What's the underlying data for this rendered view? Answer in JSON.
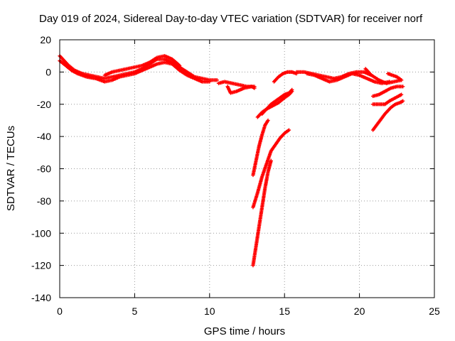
{
  "chart_data": {
    "type": "scatter",
    "title": "Day 019 of 2024, Sidereal Day-to-day VTEC variation (SDTVAR) for receiver norf",
    "xlabel": "GPS time / hours",
    "ylabel": "SDTVAR / TECUs",
    "xlim": [
      0,
      25
    ],
    "ylim": [
      -140,
      20
    ],
    "xticks": [
      0,
      5,
      10,
      15,
      20,
      25
    ],
    "yticks": [
      -140,
      -120,
      -100,
      -80,
      -60,
      -40,
      -20,
      0,
      20
    ],
    "grid": true,
    "marker": "+",
    "color": "#ff0000",
    "series": [
      {
        "points": [
          [
            0.0,
            10
          ],
          [
            0.3,
            7
          ],
          [
            0.6,
            4
          ],
          [
            1.0,
            1
          ],
          [
            1.5,
            -1
          ],
          [
            2.0,
            -2
          ],
          [
            2.5,
            -3
          ],
          [
            3.0,
            -4
          ],
          [
            3.5,
            -3
          ],
          [
            4.0,
            -2
          ],
          [
            4.5,
            -1
          ],
          [
            5.0,
            0
          ],
          [
            5.5,
            2
          ],
          [
            6.0,
            5
          ],
          [
            6.5,
            8
          ],
          [
            7.0,
            8
          ],
          [
            7.5,
            6
          ],
          [
            8.0,
            3
          ],
          [
            8.5,
            0
          ],
          [
            9.0,
            -3
          ],
          [
            9.5,
            -4
          ],
          [
            10.0,
            -5
          ],
          [
            10.5,
            -5
          ]
        ]
      },
      {
        "points": [
          [
            0.0,
            7
          ],
          [
            0.4,
            4
          ],
          [
            0.8,
            1
          ],
          [
            1.2,
            -1
          ],
          [
            1.8,
            -3
          ],
          [
            2.4,
            -4
          ],
          [
            3.0,
            -6
          ],
          [
            3.5,
            -5
          ],
          [
            4.0,
            -3
          ],
          [
            4.5,
            -2
          ],
          [
            5.0,
            -1
          ],
          [
            5.5,
            1
          ],
          [
            6.0,
            3
          ],
          [
            6.5,
            5
          ],
          [
            7.0,
            6
          ],
          [
            7.5,
            5
          ],
          [
            8.0,
            1
          ],
          [
            8.5,
            -2
          ],
          [
            9.0,
            -4
          ],
          [
            9.5,
            -6
          ],
          [
            10.0,
            -6
          ]
        ]
      },
      {
        "points": [
          [
            3.0,
            -2
          ],
          [
            3.5,
            0
          ],
          [
            4.0,
            1
          ],
          [
            4.5,
            2
          ],
          [
            5.0,
            3
          ],
          [
            5.5,
            4
          ],
          [
            6.0,
            6
          ],
          [
            6.5,
            9
          ],
          [
            7.0,
            10
          ],
          [
            7.5,
            8
          ],
          [
            8.0,
            4
          ]
        ]
      },
      {
        "points": [
          [
            10.6,
            -7
          ],
          [
            11.0,
            -6
          ],
          [
            11.5,
            -7
          ],
          [
            12.0,
            -8
          ],
          [
            12.5,
            -9
          ],
          [
            13.0,
            -9
          ]
        ]
      },
      {
        "points": [
          [
            11.2,
            -9
          ],
          [
            11.4,
            -13
          ],
          [
            11.8,
            -12
          ],
          [
            12.3,
            -10
          ],
          [
            12.8,
            -9
          ],
          [
            13.0,
            -10
          ]
        ]
      },
      {
        "points": [
          [
            12.9,
            -64
          ],
          [
            13.1,
            -55
          ],
          [
            13.3,
            -46
          ],
          [
            13.5,
            -39
          ],
          [
            13.7,
            -33
          ],
          [
            13.9,
            -30
          ]
        ]
      },
      {
        "points": [
          [
            12.9,
            -84
          ],
          [
            13.2,
            -75
          ],
          [
            13.5,
            -65
          ],
          [
            13.8,
            -57
          ],
          [
            14.1,
            -49
          ],
          [
            14.4,
            -45
          ],
          [
            14.7,
            -41
          ],
          [
            15.0,
            -38
          ],
          [
            15.3,
            -36
          ]
        ]
      },
      {
        "points": [
          [
            12.9,
            -120
          ],
          [
            13.1,
            -108
          ],
          [
            13.3,
            -96
          ],
          [
            13.5,
            -84
          ],
          [
            13.7,
            -72
          ],
          [
            13.9,
            -62
          ],
          [
            14.1,
            -55
          ]
        ]
      },
      {
        "points": [
          [
            13.2,
            -28
          ],
          [
            13.5,
            -25
          ],
          [
            13.8,
            -23
          ],
          [
            14.2,
            -21
          ],
          [
            14.6,
            -19
          ],
          [
            15.0,
            -16
          ],
          [
            15.3,
            -14
          ],
          [
            15.5,
            -12
          ]
        ]
      },
      {
        "points": [
          [
            13.5,
            -26
          ],
          [
            13.8,
            -23
          ],
          [
            14.1,
            -20
          ],
          [
            14.4,
            -18
          ],
          [
            14.7,
            -16
          ],
          [
            15.0,
            -14
          ],
          [
            15.3,
            -13
          ],
          [
            15.5,
            -11
          ]
        ]
      },
      {
        "points": [
          [
            14.3,
            -6
          ],
          [
            14.6,
            -3
          ],
          [
            14.9,
            -1
          ],
          [
            15.2,
            0
          ],
          [
            15.5,
            0
          ],
          [
            15.8,
            -1
          ]
        ]
      },
      {
        "points": [
          [
            15.8,
            0
          ],
          [
            16.3,
            0
          ],
          [
            16.8,
            -1
          ],
          [
            17.3,
            -2
          ],
          [
            17.8,
            -3
          ],
          [
            18.3,
            -4
          ],
          [
            18.8,
            -3
          ],
          [
            19.3,
            -1
          ],
          [
            19.8,
            0
          ],
          [
            20.3,
            0
          ],
          [
            20.8,
            -2
          ],
          [
            21.3,
            -5
          ],
          [
            21.8,
            -7
          ],
          [
            22.3,
            -6
          ],
          [
            22.8,
            -5
          ]
        ]
      },
      {
        "points": [
          [
            16.5,
            -1
          ],
          [
            17.0,
            -2
          ],
          [
            17.5,
            -4
          ],
          [
            18.0,
            -6
          ],
          [
            18.5,
            -5
          ],
          [
            19.0,
            -3
          ],
          [
            19.5,
            -1
          ],
          [
            20.0,
            -2
          ],
          [
            20.5,
            -4
          ],
          [
            21.0,
            -6
          ],
          [
            21.5,
            -7
          ],
          [
            22.0,
            -6
          ]
        ]
      },
      {
        "points": [
          [
            20.4,
            2
          ],
          [
            20.6,
            0
          ],
          [
            20.8,
            -2
          ]
        ]
      },
      {
        "points": [
          [
            20.9,
            -15
          ],
          [
            21.3,
            -14
          ],
          [
            21.7,
            -12
          ],
          [
            22.1,
            -10
          ],
          [
            22.5,
            -9
          ],
          [
            22.9,
            -9
          ]
        ]
      },
      {
        "points": [
          [
            20.9,
            -20
          ],
          [
            21.3,
            -20
          ],
          [
            21.7,
            -20
          ],
          [
            22.0,
            -18
          ],
          [
            22.4,
            -16
          ],
          [
            22.8,
            -14
          ]
        ]
      },
      {
        "points": [
          [
            20.9,
            -36
          ],
          [
            21.3,
            -31
          ],
          [
            21.7,
            -26
          ],
          [
            22.1,
            -22
          ],
          [
            22.4,
            -20
          ],
          [
            22.7,
            -19
          ],
          [
            22.9,
            -18
          ]
        ]
      },
      {
        "points": [
          [
            21.9,
            -1
          ],
          [
            22.2,
            -2
          ],
          [
            22.5,
            -3
          ],
          [
            22.8,
            -5
          ]
        ]
      }
    ]
  }
}
